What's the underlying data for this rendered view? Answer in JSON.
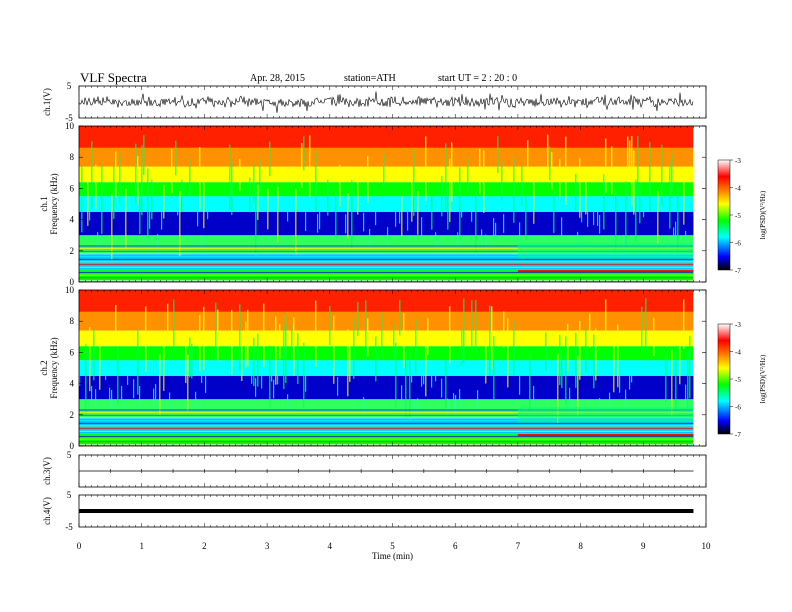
{
  "header": {
    "title": "VLF Spectra",
    "date": "Apr. 28, 2015",
    "station": "station=ATH",
    "start": "start  UT  =   2 : 20 : 0"
  },
  "colors": {
    "scale": [
      "#000000",
      "#0000ff",
      "#00ffff",
      "#00ff00",
      "#ffff00",
      "#ff8000",
      "#ff0000",
      "#ffffff"
    ]
  },
  "chart_data": [
    {
      "type": "line",
      "panel": "ch1-waveform",
      "ylabel": "ch.1(V)",
      "ylim": [
        -5,
        5
      ],
      "y_ticks": [
        "5",
        "-5"
      ],
      "xlim": [
        0,
        10
      ],
      "description": "noisy broadband waveform centered near 0 V"
    },
    {
      "type": "heatmap",
      "panel": "ch1-spectrogram",
      "ylabel": "ch.1 Frequency (kHz)",
      "ylim": [
        0,
        10
      ],
      "y_ticks": [
        "0",
        "2",
        "4",
        "6",
        "8",
        "10"
      ],
      "xlim": [
        0,
        10
      ],
      "colorbar": {
        "label": "log(PSD)(V²/Hz)",
        "ticks": [
          "-3",
          "-4",
          "-5",
          "-6",
          "-7"
        ],
        "range": [
          -7,
          -3
        ]
      }
    },
    {
      "type": "heatmap",
      "panel": "ch2-spectrogram",
      "ylabel": "ch.2 Frequency (kHz)",
      "ylim": [
        0,
        10
      ],
      "y_ticks": [
        "0",
        "2",
        "4",
        "6",
        "8",
        "10"
      ],
      "xlim": [
        0,
        10
      ],
      "colorbar": {
        "label": "log(PSD)(V²/Hz)",
        "ticks": [
          "-3",
          "-4",
          "-5",
          "-6",
          "-7"
        ],
        "range": [
          -7,
          -3
        ]
      }
    },
    {
      "type": "line",
      "panel": "ch3-waveform",
      "ylabel": "ch.3(V)",
      "ylim": [
        -5,
        5
      ],
      "y_ticks": [
        "5"
      ],
      "xlim": [
        0,
        10
      ],
      "description": "flat trace near 0 V"
    },
    {
      "type": "line",
      "panel": "ch4-waveform",
      "ylabel": "ch.4(V)",
      "ylim": [
        -5,
        5
      ],
      "y_ticks": [
        "5",
        "-5"
      ],
      "xlim": [
        0,
        10
      ],
      "description": "thick flat trace near 0 V"
    }
  ],
  "x_axis": {
    "label": "Time  (min)",
    "ticks": [
      "0",
      "1",
      "2",
      "3",
      "4",
      "5",
      "6",
      "7",
      "8",
      "9",
      "10"
    ],
    "data_end": 9.8
  }
}
